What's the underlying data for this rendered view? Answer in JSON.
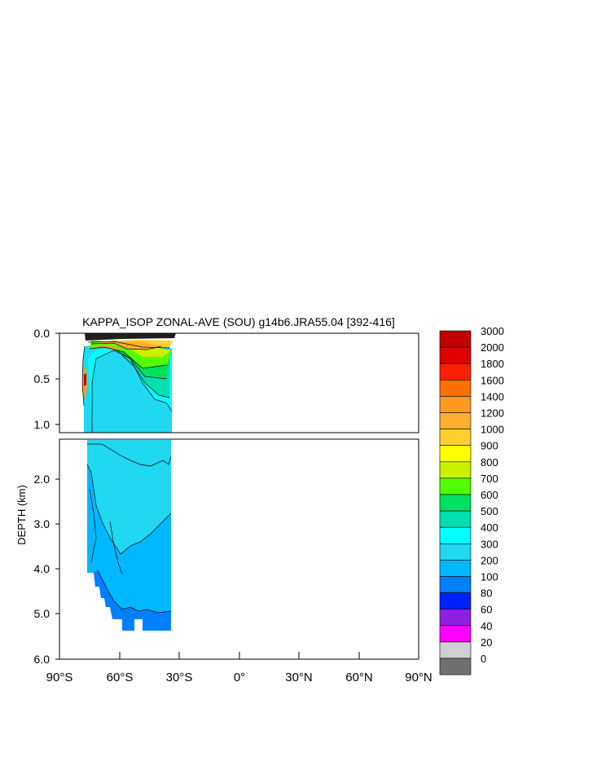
{
  "chart_data": {
    "type": "heatmap",
    "title": "KAPPA_ISOP ZONAL-AVE (SOU) g14b6.JRA55.04 [392-416]",
    "ylabel": "DEPTH (km)",
    "x_ticks": [
      {
        "value": -90,
        "label": "90°S"
      },
      {
        "value": -60,
        "label": "60°S"
      },
      {
        "value": -30,
        "label": "30°S"
      },
      {
        "value": 0,
        "label": "0°"
      },
      {
        "value": 30,
        "label": "30°N"
      },
      {
        "value": 60,
        "label": "60°N"
      },
      {
        "value": 90,
        "label": "90°N"
      }
    ],
    "y_ticks_upper": [
      {
        "value": 0.0,
        "label": "0.0"
      },
      {
        "value": 0.5,
        "label": "0.5"
      },
      {
        "value": 1.0,
        "label": "1.0"
      }
    ],
    "y_ticks_lower": [
      {
        "value": 2.0,
        "label": "2.0"
      },
      {
        "value": 3.0,
        "label": "3.0"
      },
      {
        "value": 4.0,
        "label": "4.0"
      },
      {
        "value": 5.0,
        "label": "5.0"
      },
      {
        "value": 6.0,
        "label": "6.0"
      }
    ],
    "xlim": [
      -90,
      90
    ],
    "ylim_upper": [
      0,
      1.1
    ],
    "ylim_lower": [
      1.1,
      6.0
    ],
    "colorbar": {
      "labels": [
        "3000",
        "2000",
        "1800",
        "1600",
        "1400",
        "1200",
        "1000",
        "900",
        "800",
        "700",
        "600",
        "500",
        "400",
        "300",
        "200",
        "100",
        "80",
        "60",
        "40",
        "20",
        "0"
      ],
      "colors": [
        "#c00000",
        "#e00000",
        "#ff2000",
        "#ff7000",
        "#ff9a20",
        "#ffb030",
        "#ffd030",
        "#ffff00",
        "#c8f000",
        "#50ff00",
        "#00e060",
        "#00e0b0",
        "#00ffff",
        "#20d8f0",
        "#00b8ff",
        "#0080ff",
        "#0020ff",
        "#9020e0",
        "#ff00ff",
        "#d0d0d0",
        "#707070"
      ]
    },
    "regions_upper": [
      {
        "level": "300-400",
        "color": "#20d8f0",
        "lat": [
          -77,
          -33
        ],
        "depth": [
          0.0,
          1.1
        ]
      },
      {
        "level": "400-500",
        "color": "#00ffff",
        "lat": [
          -70,
          -33
        ],
        "depth": [
          0.1,
          0.9
        ]
      },
      {
        "level": "500-600",
        "color": "#00e0b0",
        "lat": [
          -68,
          -35
        ],
        "depth": [
          0.15,
          0.7
        ]
      },
      {
        "level": "600-700",
        "color": "#00e060",
        "lat": [
          -68,
          -35
        ],
        "depth": [
          0.08,
          0.45
        ]
      },
      {
        "level": "700-800",
        "color": "#50ff00",
        "lat": [
          -72,
          -33
        ],
        "depth": [
          0.05,
          0.5
        ]
      },
      {
        "level": "900-1000",
        "color": "#ffd030",
        "lat": [
          -72,
          -33
        ],
        "depth": [
          0.07,
          0.2
        ]
      },
      {
        "level": "1000-1200",
        "color": "#ffb030",
        "lat": [
          -75,
          -50
        ],
        "depth": [
          0.07,
          0.15
        ]
      },
      {
        "level": "1400-3000",
        "color": "#e00000",
        "lat": [
          -78,
          -74
        ],
        "depth": [
          0.4,
          0.6
        ]
      }
    ],
    "regions_lower": [
      {
        "level": "300-400",
        "color": "#20d8f0",
        "lat": [
          -77,
          -33
        ],
        "depth": [
          1.1,
          3.6
        ]
      },
      {
        "level": "200-300",
        "color": "#00b8ff",
        "lat": [
          -77,
          -33
        ],
        "depth": [
          2.5,
          5.0
        ]
      },
      {
        "level": "100-200",
        "color": "#0080ff",
        "lat": [
          -77,
          -33
        ],
        "depth": [
          4.0,
          5.4
        ]
      }
    ],
    "grid": false,
    "legend": "right"
  }
}
